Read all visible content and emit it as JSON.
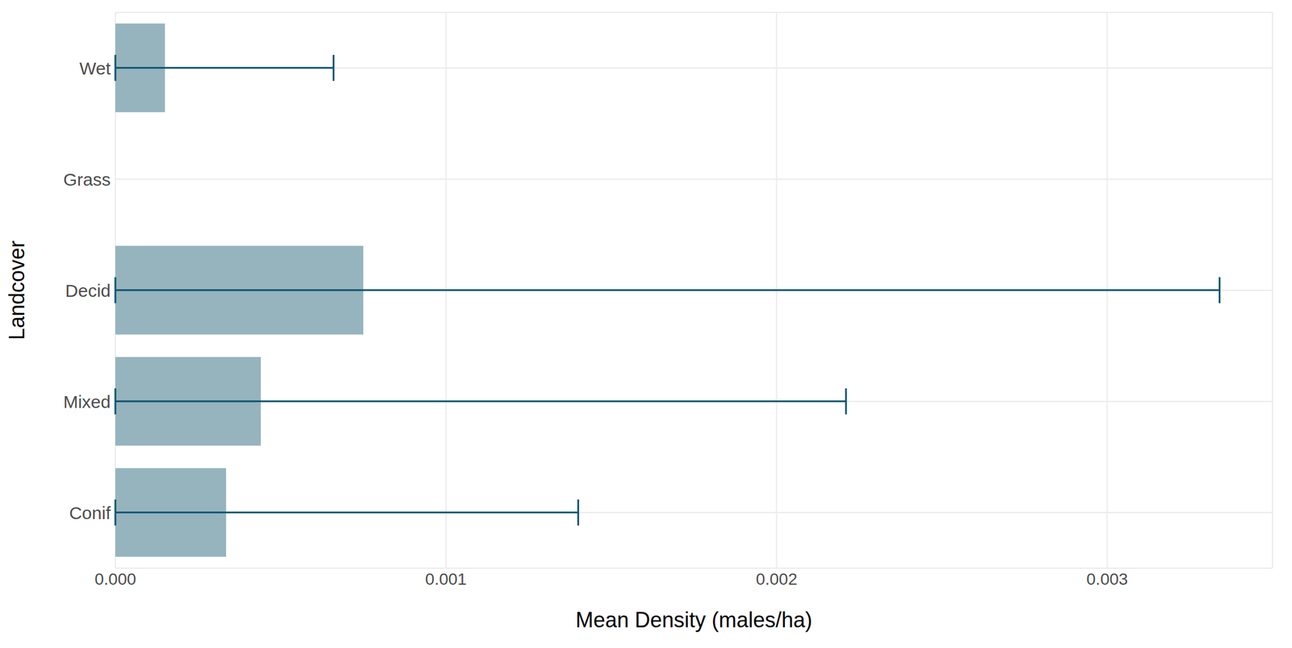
{
  "chart_data": {
    "type": "bar",
    "orientation": "horizontal",
    "x_label": "Mean Density (males/ha)",
    "y_label": "Landcover",
    "categories": [
      "Wet",
      "Grass",
      "Decid",
      "Mixed",
      "Conif"
    ],
    "values": [
      0.00015,
      0,
      0.00075,
      0.00044,
      0.000335
    ],
    "error_low": [
      0,
      0,
      0,
      0,
      0
    ],
    "error_high": [
      0.00066,
      0,
      0.00334,
      0.00221,
      0.0014
    ],
    "color": "#96b4be",
    "error_color": "#0f5470",
    "xlim": [
      0,
      0.0035
    ],
    "xticks": [
      {
        "value": 0,
        "label": "0.000"
      },
      {
        "value": 0.001,
        "label": "0.001"
      },
      {
        "value": 0.002,
        "label": "0.002"
      },
      {
        "value": 0.003,
        "label": "0.003"
      }
    ],
    "grid": true
  }
}
